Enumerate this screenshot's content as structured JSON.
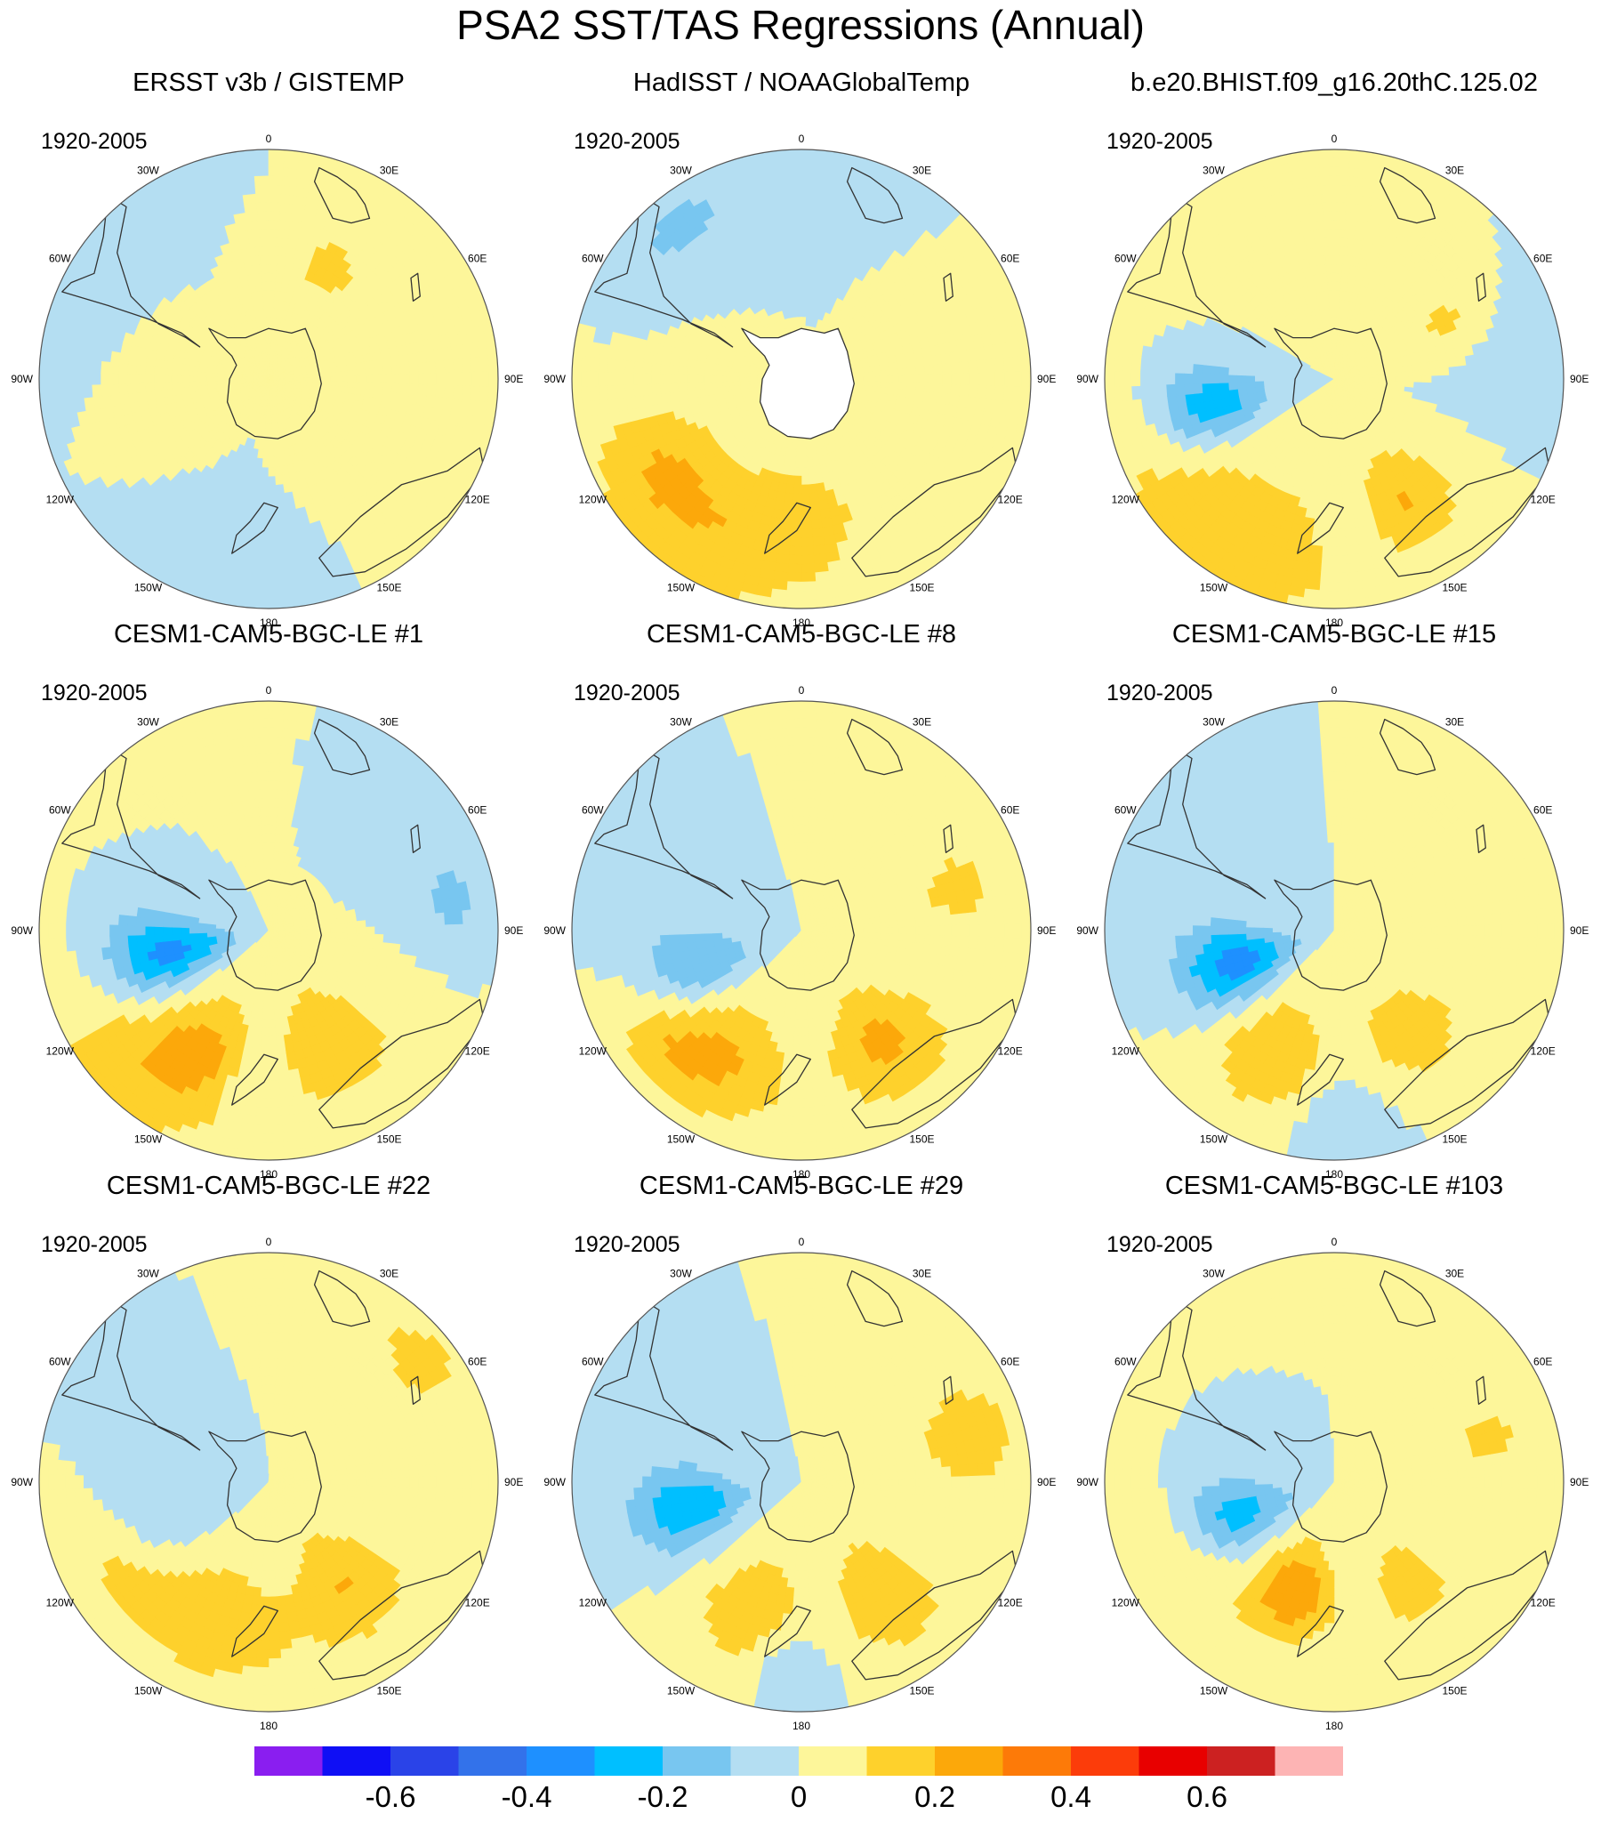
{
  "title": "PSA2 SST/TAS Regressions (Annual)",
  "colors": {
    "land_mask": "#ffffff",
    "coastline": "#333333",
    "outline": "#555555"
  },
  "chart_data": {
    "type": "contour-map",
    "projection": "south-polar-stereographic",
    "colorbar": {
      "levels": [
        -0.7,
        -0.6,
        -0.5,
        -0.4,
        -0.3,
        -0.2,
        -0.1,
        0,
        0.1,
        0.2,
        0.3,
        0.4,
        0.5,
        0.6,
        0.7
      ],
      "colors": [
        "#8a1ef0",
        "#0f0ff5",
        "#2a43e8",
        "#3372ea",
        "#1e90ff",
        "#00bfff",
        "#78c6f0",
        "#b4def2",
        "#fdf69a",
        "#fed12c",
        "#fca80a",
        "#fd7a08",
        "#fc3c0a",
        "#e80000",
        "#cc2121",
        "#fdb4b4"
      ],
      "tick_values": [
        -0.6,
        -0.4,
        -0.2,
        0,
        0.2,
        0.4,
        0.6
      ],
      "tick_labels": [
        "-0.6",
        "-0.4",
        "-0.2",
        "0",
        "0.2",
        "0.4",
        "0.6"
      ]
    },
    "longitude_labels": [
      "0",
      "30E",
      "60E",
      "90E",
      "120E",
      "150E",
      "180",
      "150W",
      "120W",
      "90W",
      "60W",
      "30W"
    ],
    "panels": [
      {
        "title": "ERSST v3b / GISTEMP",
        "period": "1920-2005"
      },
      {
        "title": "HadISST / NOAAGlobalTemp",
        "period": "1920-2005"
      },
      {
        "title": "b.e20.BHIST.f09_g16.20thC.125.02",
        "period": "1920-2005"
      },
      {
        "title": "CESM1-CAM5-BGC-LE #1",
        "period": "1920-2005"
      },
      {
        "title": "CESM1-CAM5-BGC-LE #8",
        "period": "1920-2005"
      },
      {
        "title": "CESM1-CAM5-BGC-LE #15",
        "period": "1920-2005"
      },
      {
        "title": "CESM1-CAM5-BGC-LE #22",
        "period": "1920-2005"
      },
      {
        "title": "CESM1-CAM5-BGC-LE #29",
        "period": "1920-2005"
      },
      {
        "title": "CESM1-CAM5-BGC-LE #103",
        "period": "1920-2005"
      }
    ]
  }
}
